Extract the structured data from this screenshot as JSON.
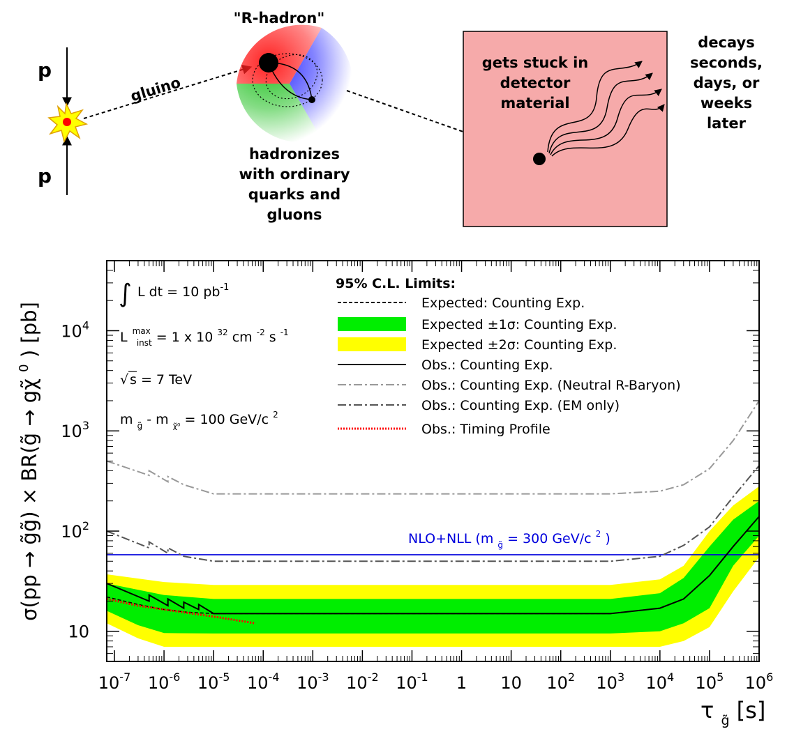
{
  "diagram": {
    "p_top": "p",
    "p_bottom": "p",
    "gluino_label": "gluino",
    "rhadron_title": "\"R-hadron\"",
    "hadronizes_lines": [
      "hadronizes",
      "with ordinary",
      "quarks and",
      "gluons"
    ],
    "stuck_lines": [
      "gets stuck in",
      "detector",
      "material"
    ],
    "decays_lines": [
      "decays",
      "seconds,",
      "days, or",
      "weeks",
      "later"
    ],
    "colors": {
      "red": "#ff3030",
      "green": "#30c030",
      "blue": "#3030ff",
      "detector_fill": "#f6aaaa",
      "star": "#ffff00"
    }
  },
  "chart_data": {
    "type": "line",
    "x_scale": "log",
    "y_scale": "log",
    "xlim": [
      7e-08,
      1000000
    ],
    "ylim": [
      5,
      50000
    ],
    "grid": false,
    "legend_placement": "top-right",
    "x_tick_labels": [
      {
        "v": 1e-07,
        "base": "10",
        "exp": "-7"
      },
      {
        "v": 1e-06,
        "base": "10",
        "exp": "-6"
      },
      {
        "v": 1e-05,
        "base": "10",
        "exp": "-5"
      },
      {
        "v": 0.0001,
        "base": "10",
        "exp": "-4"
      },
      {
        "v": 0.001,
        "base": "10",
        "exp": "-3"
      },
      {
        "v": 0.01,
        "base": "10",
        "exp": "-2"
      },
      {
        "v": 0.1,
        "base": "10",
        "exp": "-1"
      },
      {
        "v": 1,
        "base": "1",
        "exp": ""
      },
      {
        "v": 10,
        "base": "10",
        "exp": ""
      },
      {
        "v": 100,
        "base": "10",
        "exp": "2"
      },
      {
        "v": 1000,
        "base": "10",
        "exp": "3"
      },
      {
        "v": 10000,
        "base": "10",
        "exp": "4"
      },
      {
        "v": 100000,
        "base": "10",
        "exp": "5"
      },
      {
        "v": 1000000,
        "base": "10",
        "exp": "6"
      }
    ],
    "y_tick_labels": [
      {
        "v": 10,
        "base": "10",
        "exp": ""
      },
      {
        "v": 100,
        "base": "10",
        "exp": "2"
      },
      {
        "v": 1000,
        "base": "10",
        "exp": "3"
      },
      {
        "v": 10000,
        "base": "10",
        "exp": "4"
      }
    ],
    "xlabel": {
      "main": "τ",
      "sub": "g̃",
      "unit": " [s]"
    },
    "ylabel": {
      "part1": "σ(pp → g̃g̃) × BR(g̃ → gχ̃",
      "sup": "0",
      "part2": ") [pb]"
    },
    "info": {
      "lumi": {
        "text": "L dt = 10 pb",
        "sup": "-1"
      },
      "inst": {
        "prefix": "L",
        "sup": "max",
        "sub": "inst",
        "text1": " = 1 x 10",
        "sup2": "32",
        "text2": " cm",
        "sup3": "-2",
        "text3": "s",
        "sup4": "-1"
      },
      "energy": {
        "text": "s = 7 TeV"
      },
      "mass": {
        "m": "m",
        "sub1": "g̃",
        "mid": " - m",
        "sub2": "χ̃⁰",
        "text": " = 100 GeV/c",
        "sup": "2"
      }
    },
    "legend_title": "95% C.L. Limits:",
    "legend": [
      {
        "label": "Expected: Counting Exp.",
        "style": "dashed",
        "color": "#000000"
      },
      {
        "label": "Expected ±1σ: Counting Exp.",
        "style": "band",
        "color": "#00ee00"
      },
      {
        "label": "Expected ±2σ: Counting Exp.",
        "style": "band",
        "color": "#ffff00"
      },
      {
        "label": "Obs.: Counting Exp.",
        "style": "solid",
        "color": "#000000"
      },
      {
        "label": "Obs.: Counting Exp. (Neutral R-Baryon)",
        "style": "dashdot",
        "color": "#999999"
      },
      {
        "label": "Obs.: Counting Exp. (EM only)",
        "style": "dashdot",
        "color": "#555555"
      },
      {
        "label": "Obs.: Timing Profile",
        "style": "dotted",
        "color": "#ff0000"
      }
    ],
    "nlo_line": {
      "y": 58,
      "label": "NLO+NLL (m",
      "label_sub": "g̃",
      "label_rest": " = 300 GeV/c",
      "label_sup": "2",
      "label_end": ")",
      "color": "#0000dd"
    },
    "series": {
      "band2": {
        "upper": [
          [
            7e-08,
            37
          ],
          [
            1e-06,
            31
          ],
          [
            1e-05,
            29
          ],
          [
            1000,
            29
          ],
          [
            10000,
            33
          ],
          [
            30000,
            45
          ],
          [
            100000,
            100
          ],
          [
            300000,
            180
          ],
          [
            1000000,
            280
          ]
        ],
        "lower": [
          [
            1000000,
            55
          ],
          [
            300000,
            25
          ],
          [
            100000,
            11
          ],
          [
            30000,
            8
          ],
          [
            10000,
            7
          ],
          [
            1000,
            7
          ],
          [
            1e-05,
            7
          ],
          [
            1e-06,
            7
          ],
          [
            3e-07,
            8.5
          ],
          [
            7e-08,
            12
          ]
        ]
      },
      "band1": {
        "upper": [
          [
            7e-08,
            30
          ],
          [
            1e-06,
            23
          ],
          [
            1e-05,
            21
          ],
          [
            1000,
            21
          ],
          [
            10000,
            24
          ],
          [
            30000,
            34
          ],
          [
            100000,
            70
          ],
          [
            300000,
            130
          ],
          [
            1000000,
            200
          ]
        ],
        "lower": [
          [
            1000000,
            90
          ],
          [
            300000,
            45
          ],
          [
            100000,
            17
          ],
          [
            30000,
            12
          ],
          [
            10000,
            10
          ],
          [
            1000,
            9.5
          ],
          [
            1e-05,
            9.5
          ],
          [
            1e-06,
            9.6
          ],
          [
            3e-07,
            11.5
          ],
          [
            7e-08,
            16
          ]
        ]
      },
      "expected": [
        [
          7e-08,
          22
        ],
        [
          3e-07,
          18.5
        ],
        [
          1e-06,
          16.5
        ],
        [
          3e-06,
          15.5
        ],
        [
          1e-05,
          15
        ],
        [
          1000,
          15
        ],
        [
          10000,
          17
        ],
        [
          30000,
          21
        ],
        [
          100000,
          36
        ],
        [
          300000,
          70
        ],
        [
          1000000,
          140
        ]
      ],
      "observed": [
        [
          7e-08,
          30
        ],
        [
          5e-07,
          20
        ],
        [
          5e-07,
          23
        ],
        [
          1.2e-06,
          18
        ],
        [
          1.2e-06,
          21
        ],
        [
          2.5e-06,
          17
        ],
        [
          2.5e-06,
          19.5
        ],
        [
          5e-06,
          16.5
        ],
        [
          5e-06,
          18.5
        ],
        [
          1e-05,
          15
        ],
        [
          1000,
          15
        ],
        [
          10000,
          17
        ],
        [
          30000,
          21
        ],
        [
          100000,
          36
        ],
        [
          300000,
          70
        ],
        [
          1000000,
          140
        ]
      ],
      "neutral": [
        [
          7e-08,
          500
        ],
        [
          5e-07,
          360
        ],
        [
          5e-07,
          400
        ],
        [
          1.2e-06,
          310
        ],
        [
          1.2e-06,
          350
        ],
        [
          2.5e-06,
          290
        ],
        [
          1e-05,
          235
        ],
        [
          1000,
          235
        ],
        [
          10000,
          250
        ],
        [
          30000,
          290
        ],
        [
          100000,
          420
        ],
        [
          300000,
          800
        ],
        [
          1000000,
          2000
        ]
      ],
      "em": [
        [
          7e-08,
          100
        ],
        [
          5e-07,
          68
        ],
        [
          5e-07,
          78
        ],
        [
          1.2e-06,
          60
        ],
        [
          1.2e-06,
          68
        ],
        [
          2.5e-06,
          56
        ],
        [
          1e-05,
          50
        ],
        [
          1000,
          50
        ],
        [
          10000,
          56
        ],
        [
          30000,
          72
        ],
        [
          100000,
          110
        ],
        [
          300000,
          220
        ],
        [
          1000000,
          450
        ]
      ],
      "timing": [
        [
          7e-08,
          21
        ],
        [
          3e-07,
          18
        ],
        [
          1e-06,
          16.5
        ],
        [
          1e-05,
          14
        ],
        [
          7e-05,
          12
        ]
      ]
    }
  }
}
